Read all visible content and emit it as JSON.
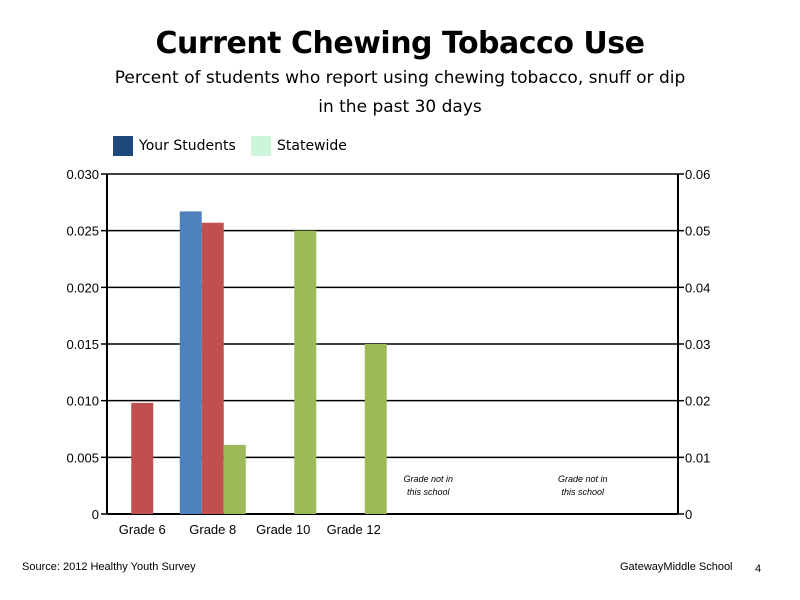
{
  "header": {
    "title": "Current Chewing Tobacco Use",
    "subtitle_line1": "Percent of students who report using chewing tobacco, snuff or dip",
    "subtitle_line2": "in the past 30 days"
  },
  "legend": [
    {
      "label": "Your Students",
      "color": "#1f497d"
    },
    {
      "label": "Statewide",
      "color": "#ccf5d9"
    }
  ],
  "footer": {
    "source": "Source: 2012 Healthy Youth Survey",
    "school": "GatewayMiddle  School",
    "page_number": "4"
  },
  "chart_data": {
    "type": "bar",
    "categories": [
      "Grade 6",
      "Grade 8",
      "Grade 10",
      "Grade 12",
      "",
      ""
    ],
    "left_axis": {
      "range": [
        0,
        0.03
      ],
      "ticks": [
        "0",
        "0.005",
        "0.010",
        "0.015",
        "0.020",
        "0.025",
        "0.030"
      ],
      "tick_values": [
        0,
        0.005,
        0.01,
        0.015,
        0.02,
        0.025,
        0.03
      ]
    },
    "right_axis": {
      "range": [
        0,
        0.06
      ],
      "ticks": [
        "0",
        "0.01",
        "0.02",
        "0.03",
        "0.04",
        "0.05",
        "0.06"
      ],
      "tick_values": [
        0,
        0.01,
        0.02,
        0.03,
        0.04,
        0.05,
        0.06
      ]
    },
    "grid": true,
    "series": [
      {
        "color": "#4f81bd",
        "axis": "left",
        "values": [
          null,
          0.0267,
          null,
          null,
          null,
          null
        ]
      },
      {
        "color": "#c0504d",
        "axis": "left",
        "values": [
          0.0098,
          0.0257,
          null,
          null,
          null,
          null
        ]
      },
      {
        "color": "#9bbb59",
        "axis": "right",
        "values": [
          null,
          0.0122,
          0.05,
          0.03,
          null,
          null
        ]
      }
    ],
    "annotations": [
      {
        "category_index": 4,
        "line1": "Grade not in",
        "line2": "this school"
      },
      {
        "category_index": 5,
        "line1": "Grade not in",
        "line2": "this school"
      }
    ]
  }
}
